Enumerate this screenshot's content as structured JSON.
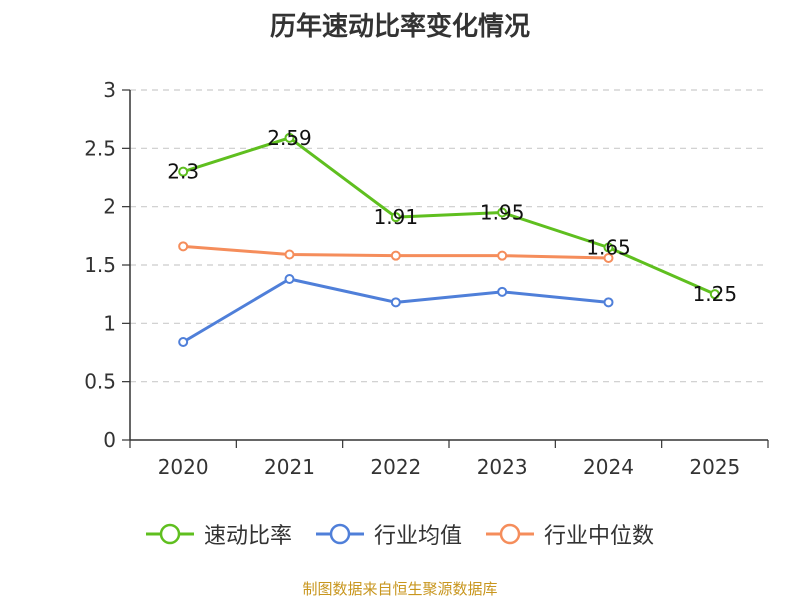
{
  "chart_data": {
    "type": "line",
    "title": "历年速动比率变化情况",
    "categories": [
      "2020",
      "2021",
      "2022",
      "2023",
      "2024",
      "2025"
    ],
    "yticks": [
      "0",
      "0.5",
      "1",
      "1.5",
      "2",
      "2.5",
      "3"
    ],
    "ylim": [
      0,
      3
    ],
    "grid": true,
    "legend_position": "bottom",
    "series": [
      {
        "name": "速动比率",
        "color": "#5fbf1f",
        "values": [
          2.3,
          2.59,
          1.91,
          1.95,
          1.65,
          1.25
        ],
        "labels": [
          "2.3",
          "2.59",
          "1.91",
          "1.95",
          "1.65",
          "1.25"
        ]
      },
      {
        "name": "行业均值",
        "color": "#4f7fd9",
        "values": [
          0.84,
          1.38,
          1.18,
          1.27,
          1.18,
          null
        ]
      },
      {
        "name": "行业中位数",
        "color": "#f58d5b",
        "values": [
          1.66,
          1.59,
          1.58,
          1.58,
          1.56,
          null
        ]
      }
    ]
  },
  "legend": {
    "items": [
      {
        "label": "速动比率",
        "color": "#5fbf1f"
      },
      {
        "label": "行业均值",
        "color": "#4f7fd9"
      },
      {
        "label": "行业中位数",
        "color": "#f58d5b"
      }
    ]
  },
  "footer": {
    "source": "制图数据来自恒生聚源数据库",
    "color": "#c8961e"
  }
}
